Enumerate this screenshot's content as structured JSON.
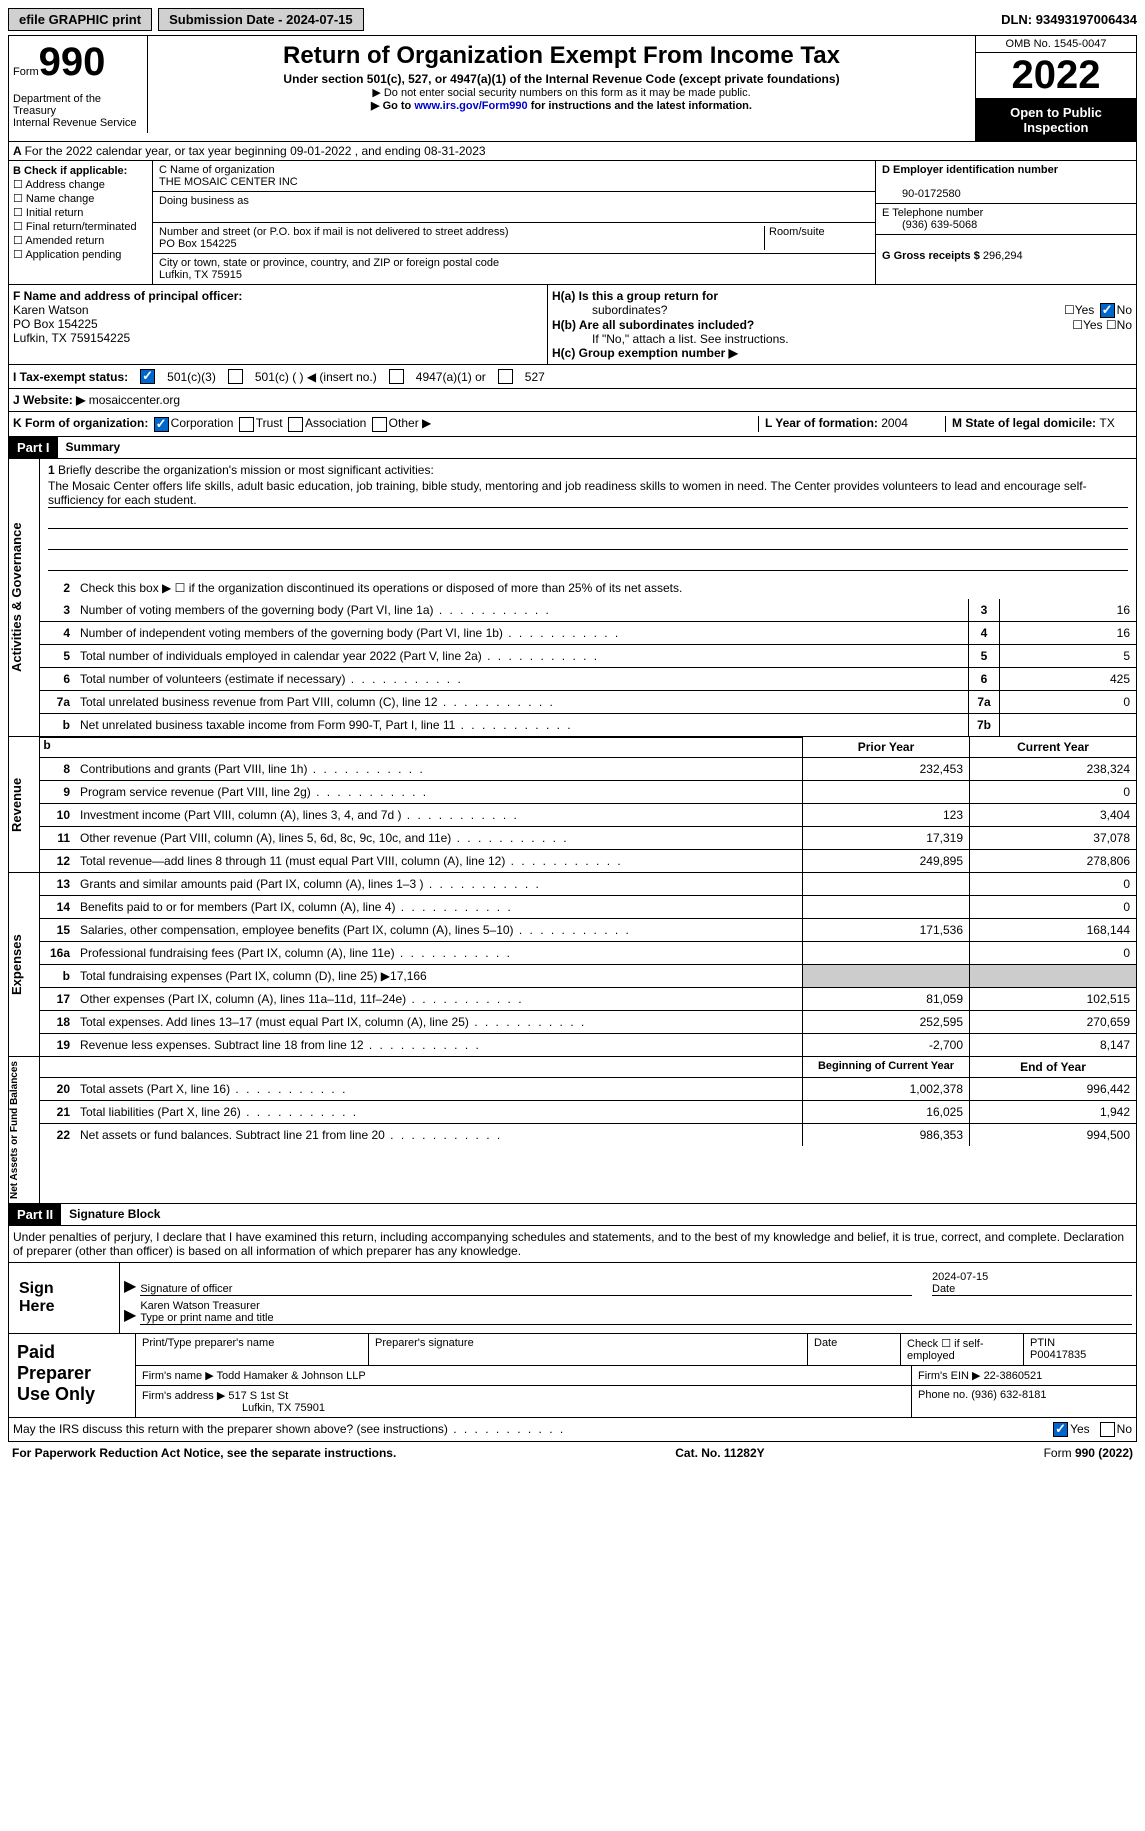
{
  "topbar": {
    "efile": "efile GRAPHIC print",
    "subdate_label": "Submission Date - ",
    "subdate": "2024-07-15",
    "dln_label": "DLN: ",
    "dln": "93493197006434"
  },
  "header": {
    "form_word": "Form",
    "form_num": "990",
    "title": "Return of Organization Exempt From Income Tax",
    "sub1": "Under section 501(c), 527, or 4947(a)(1) of the Internal Revenue Code (except private foundations)",
    "sub2": "▶ Do not enter social security numbers on this form as it may be made public.",
    "sub3_pre": "▶ Go to ",
    "sub3_link": "www.irs.gov/Form990",
    "sub3_post": " for instructions and the latest information.",
    "omb": "OMB No. 1545-0047",
    "year": "2022",
    "open1": "Open to Public",
    "open2": "Inspection",
    "dept1": "Department of the Treasury",
    "dept2": "Internal Revenue Service",
    "line_a": "For the 2022 calendar year, or tax year beginning 09-01-2022    , and ending 08-31-2023"
  },
  "colB": {
    "hdr": "B Check if applicable:",
    "opts": [
      "Address change",
      "Name change",
      "Initial return",
      "Final return/terminated",
      "Amended return",
      "Application pending"
    ]
  },
  "colC": {
    "name_label": "C Name of organization",
    "name": "THE MOSAIC CENTER INC",
    "dba": "Doing business as",
    "addr_label": "Number and street (or P.O. box if mail is not delivered to street address)",
    "room": "Room/suite",
    "addr": "PO Box 154225",
    "city_label": "City or town, state or province, country, and ZIP or foreign postal code",
    "city": "Lufkin, TX  75915"
  },
  "colD": {
    "ein_label": "D Employer identification number",
    "ein": "90-0172580",
    "tel_label": "E Telephone number",
    "tel": "(936) 639-5068",
    "gross_label": "G Gross receipts $ ",
    "gross": "296,294"
  },
  "rowF": {
    "f_label": "F  Name and address of principal officer:",
    "name": "Karen Watson",
    "addr1": "PO Box 154225",
    "addr2": "Lufkin, TX  759154225"
  },
  "rowH": {
    "ha": "H(a)  Is this a group return for",
    "ha2": "subordinates?",
    "yes": "Yes",
    "no": "No",
    "hb": "H(b)  Are all subordinates included?",
    "hb_note": "If \"No,\" attach a list. See instructions.",
    "hc": "H(c)  Group exemption number ▶"
  },
  "rowI": {
    "label": "I   Tax-exempt status:",
    "o1": "501(c)(3)",
    "o2": "501(c) (  ) ◀ (insert no.)",
    "o3": "4947(a)(1) or",
    "o4": "527"
  },
  "rowJ": {
    "label": "J   Website: ▶",
    "val": "  mosaiccenter.org"
  },
  "rowK": {
    "label": "K Form of organization:",
    "o1": "Corporation",
    "o2": "Trust",
    "o3": "Association",
    "o4": "Other ▶",
    "l": "L Year of formation: ",
    "lval": "2004",
    "m": "M State of legal domicile: ",
    "mval": "TX"
  },
  "part1": {
    "label": "Part I",
    "title": "Summary"
  },
  "summary": {
    "line1_label": "Briefly describe the organization's mission or most significant activities:",
    "line1_text": "The Mosaic Center offers life skills, adult basic education, job training, bible study, mentoring and job readiness skills to women in need. The Center provides volunteers to lead and encourage self-sufficiency for each student.",
    "line2": "Check this box ▶ ☐  if the organization discontinued its operations or disposed of more than 25% of its net assets.",
    "lines": [
      {
        "n": "3",
        "t": "Number of voting members of the governing body (Part VI, line 1a)",
        "box": "3",
        "v": "16"
      },
      {
        "n": "4",
        "t": "Number of independent voting members of the governing body (Part VI, line 1b)",
        "box": "4",
        "v": "16"
      },
      {
        "n": "5",
        "t": "Total number of individuals employed in calendar year 2022 (Part V, line 2a)",
        "box": "5",
        "v": "5"
      },
      {
        "n": "6",
        "t": "Total number of volunteers (estimate if necessary)",
        "box": "6",
        "v": "425"
      },
      {
        "n": "7a",
        "t": "Total unrelated business revenue from Part VIII, column (C), line 12",
        "box": "7a",
        "v": "0"
      },
      {
        "n": "b",
        "t": "Net unrelated business taxable income from Form 990-T, Part I, line 11",
        "box": "7b",
        "v": ""
      }
    ],
    "hdr_prior": "Prior Year",
    "hdr_current": "Current Year",
    "revenue": [
      {
        "n": "8",
        "t": "Contributions and grants (Part VIII, line 1h)",
        "c1": "232,453",
        "c2": "238,324"
      },
      {
        "n": "9",
        "t": "Program service revenue (Part VIII, line 2g)",
        "c1": "",
        "c2": "0"
      },
      {
        "n": "10",
        "t": "Investment income (Part VIII, column (A), lines 3, 4, and 7d )",
        "c1": "123",
        "c2": "3,404"
      },
      {
        "n": "11",
        "t": "Other revenue (Part VIII, column (A), lines 5, 6d, 8c, 9c, 10c, and 11e)",
        "c1": "17,319",
        "c2": "37,078"
      },
      {
        "n": "12",
        "t": "Total revenue—add lines 8 through 11 (must equal Part VIII, column (A), line 12)",
        "c1": "249,895",
        "c2": "278,806"
      }
    ],
    "expenses": [
      {
        "n": "13",
        "t": "Grants and similar amounts paid (Part IX, column (A), lines 1–3 )",
        "c1": "",
        "c2": "0"
      },
      {
        "n": "14",
        "t": "Benefits paid to or for members (Part IX, column (A), line 4)",
        "c1": "",
        "c2": "0"
      },
      {
        "n": "15",
        "t": "Salaries, other compensation, employee benefits (Part IX, column (A), lines 5–10)",
        "c1": "171,536",
        "c2": "168,144"
      },
      {
        "n": "16a",
        "t": "Professional fundraising fees (Part IX, column (A), line 11e)",
        "c1": "",
        "c2": "0"
      },
      {
        "n": "b",
        "t": "Total fundraising expenses (Part IX, column (D), line 25) ▶17,166",
        "shaded": true
      },
      {
        "n": "17",
        "t": "Other expenses (Part IX, column (A), lines 11a–11d, 11f–24e)",
        "c1": "81,059",
        "c2": "102,515"
      },
      {
        "n": "18",
        "t": "Total expenses. Add lines 13–17 (must equal Part IX, column (A), line 25)",
        "c1": "252,595",
        "c2": "270,659"
      },
      {
        "n": "19",
        "t": "Revenue less expenses. Subtract line 18 from line 12",
        "c1": "-2,700",
        "c2": "8,147"
      }
    ],
    "hdr_begin": "Beginning of Current Year",
    "hdr_end": "End of Year",
    "netassets": [
      {
        "n": "20",
        "t": "Total assets (Part X, line 16)",
        "c1": "1,002,378",
        "c2": "996,442"
      },
      {
        "n": "21",
        "t": "Total liabilities (Part X, line 26)",
        "c1": "16,025",
        "c2": "1,942"
      },
      {
        "n": "22",
        "t": "Net assets or fund balances. Subtract line 21 from line 20",
        "c1": "986,353",
        "c2": "994,500"
      }
    ],
    "tab_gov": "Activities & Governance",
    "tab_rev": "Revenue",
    "tab_exp": "Expenses",
    "tab_net": "Net Assets or Fund Balances"
  },
  "part2": {
    "label": "Part II",
    "title": "Signature Block",
    "decl": "Under penalties of perjury, I declare that I have examined this return, including accompanying schedules and statements, and to the best of my knowledge and belief, it is true, correct, and complete. Declaration of preparer (other than officer) is based on all information of which preparer has any knowledge."
  },
  "sign": {
    "label1": "Sign",
    "label2": "Here",
    "sig_officer": "Signature of officer",
    "date": "2024-07-15",
    "date_lbl": "Date",
    "name": "Karen Watson  Treasurer",
    "name_lbl": "Type or print name and title"
  },
  "paid": {
    "label1": "Paid",
    "label2": "Preparer",
    "label3": "Use Only",
    "h1": "Print/Type preparer's name",
    "h2": "Preparer's signature",
    "h3": "Date",
    "h4": "Check ☐  if self-employed",
    "h5": "PTIN",
    "ptin": "P00417835",
    "firm_lbl": "Firm's name      ▶",
    "firm": "Todd Hamaker & Johnson LLP",
    "ein_lbl": "Firm's EIN ▶",
    "ein": "22-3860521",
    "addr_lbl": "Firm's address ▶",
    "addr1": "517 S 1st St",
    "addr2": "Lufkin, TX  75901",
    "phone_lbl": "Phone no. ",
    "phone": "(936) 632-8181"
  },
  "discuss": {
    "q": "May the IRS discuss this return with the preparer shown above? (see instructions)",
    "yes": "Yes",
    "no": "No"
  },
  "footer": {
    "l": "For Paperwork Reduction Act Notice, see the separate instructions.",
    "c": "Cat. No. 11282Y",
    "r": "Form 990 (2022)"
  }
}
